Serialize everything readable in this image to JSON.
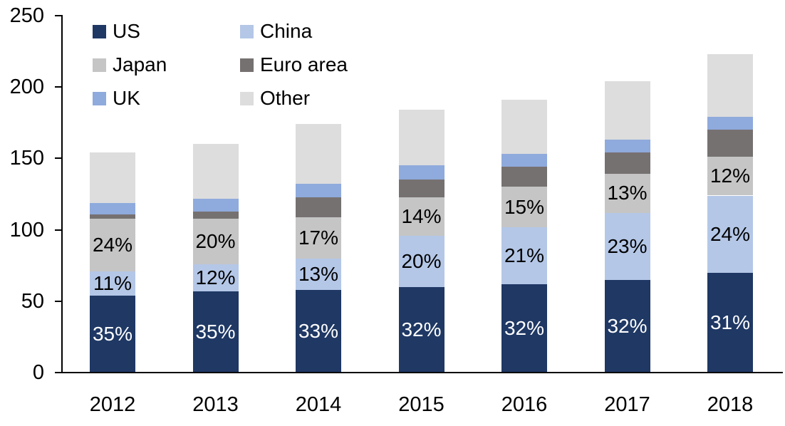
{
  "chart_data": {
    "type": "bar",
    "stacked": true,
    "categories": [
      "2012",
      "2013",
      "2014",
      "2015",
      "2016",
      "2017",
      "2018"
    ],
    "totals": [
      154,
      160,
      174,
      184,
      191,
      204,
      223
    ],
    "ylim": [
      0,
      250
    ],
    "yticks": [
      0,
      50,
      100,
      150,
      200,
      250
    ],
    "grid": false,
    "legend_position": "top-left",
    "legend_columns": 2,
    "legend_order": [
      "US",
      "China",
      "Japan",
      "Euro area",
      "UK",
      "Other"
    ],
    "axis_color": "#000000",
    "series": [
      {
        "name": "US",
        "color": "#1f3864",
        "values": [
          54,
          57,
          58,
          60,
          62,
          65,
          70
        ],
        "labels": [
          "35%",
          "35%",
          "33%",
          "32%",
          "32%",
          "32%",
          "31%"
        ],
        "label_color": "#ffffff"
      },
      {
        "name": "China",
        "color": "#b4c7e7",
        "values": [
          17,
          19,
          22,
          36,
          40,
          47,
          54
        ],
        "labels": [
          "11%",
          "12%",
          "13%",
          "20%",
          "21%",
          "23%",
          "24%"
        ],
        "label_color": "#000000"
      },
      {
        "name": "Japan",
        "color": "#c5c5c5",
        "values": [
          37,
          32,
          29,
          27,
          28,
          27,
          27
        ],
        "labels": [
          "24%",
          "20%",
          "17%",
          "14%",
          "15%",
          "13%",
          "12%"
        ],
        "label_color": "#000000"
      },
      {
        "name": "Euro area",
        "color": "#767171",
        "values": [
          3,
          5,
          14,
          12,
          14,
          15,
          19
        ],
        "labels": null,
        "label_color": null
      },
      {
        "name": "UK",
        "color": "#8faadc",
        "values": [
          8,
          9,
          9,
          10,
          9,
          9,
          9
        ],
        "labels": null,
        "label_color": null
      },
      {
        "name": "Other",
        "color": "#dddddd",
        "values": [
          35,
          38,
          42,
          39,
          38,
          41,
          44
        ],
        "labels": null,
        "label_color": null
      }
    ]
  }
}
